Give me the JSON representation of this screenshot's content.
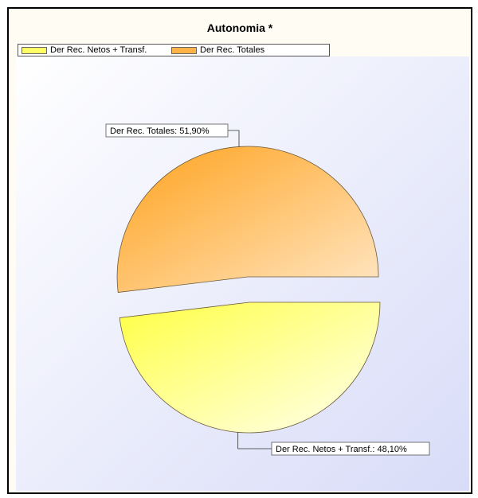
{
  "chart_data": {
    "type": "pie",
    "title": "Autonomia *",
    "categories": [
      "Der Rec. Netos + Transf.",
      "Der Rec. Totales"
    ],
    "values": [
      48.1,
      51.9
    ],
    "colors": [
      "#ffff66",
      "#ffa726"
    ],
    "slice_labels": [
      "Der Rec. Netos + Transf.: 48,10%",
      "Der Rec. Totales: 51,90%"
    ],
    "exploded": true,
    "legend": "top-left"
  }
}
